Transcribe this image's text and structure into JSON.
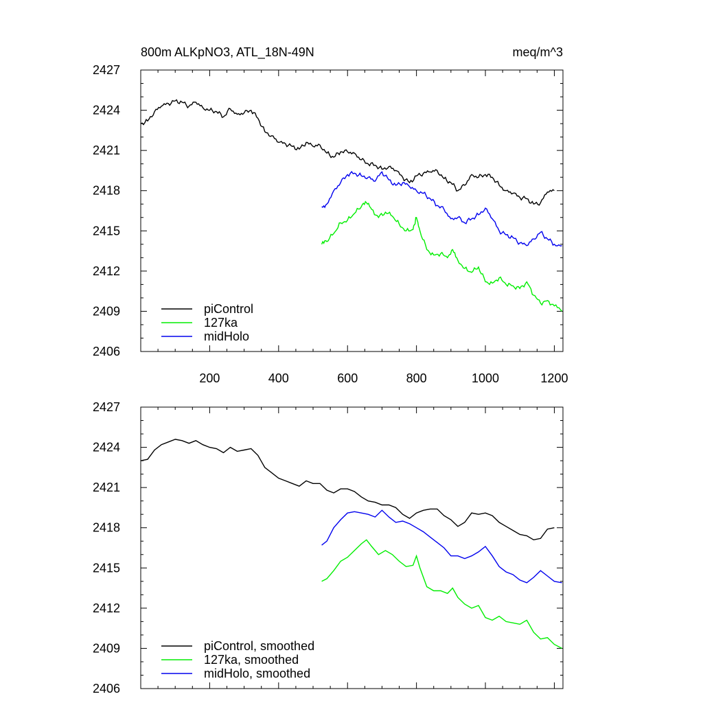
{
  "chart_data": [
    {
      "type": "line",
      "title": "800m ALKpNO3, ATL_18N-49N",
      "title_right": "meq/m^3",
      "xlim": [
        0,
        1225
      ],
      "ylim": [
        2406,
        2427
      ],
      "yticks": [
        2406,
        2409,
        2412,
        2415,
        2418,
        2421,
        2424,
        2427
      ],
      "xticks": [
        200,
        400,
        600,
        800,
        1000,
        1200
      ],
      "show_x_tick_labels": true,
      "legend_position": "bottom-left",
      "series": [
        {
          "name": "piControl",
          "color": "#000000",
          "x": [
            0,
            20,
            40,
            60,
            80,
            100,
            120,
            140,
            160,
            180,
            200,
            220,
            240,
            260,
            280,
            300,
            320,
            340,
            360,
            380,
            400,
            420,
            440,
            460,
            480,
            500,
            520,
            540,
            560,
            580,
            600,
            620,
            640,
            660,
            680,
            700,
            720,
            740,
            760,
            780,
            800,
            820,
            840,
            860,
            880,
            900,
            920,
            940,
            960,
            980,
            1000,
            1020,
            1040,
            1060,
            1080,
            1100,
            1120,
            1140,
            1160,
            1180,
            1200
          ],
          "y": [
            2423.0,
            2423.2,
            2423.9,
            2424.3,
            2424.5,
            2424.7,
            2424.6,
            2424.3,
            2424.6,
            2424.2,
            2424.0,
            2423.9,
            2423.5,
            2424.1,
            2423.7,
            2423.8,
            2424.0,
            2423.4,
            2422.4,
            2422.1,
            2421.6,
            2421.5,
            2421.3,
            2421.1,
            2421.6,
            2421.3,
            2421.4,
            2420.8,
            2420.5,
            2420.9,
            2420.9,
            2420.8,
            2420.3,
            2420.0,
            2419.9,
            2419.6,
            2419.8,
            2419.5,
            2419.0,
            2418.6,
            2419.1,
            2419.3,
            2419.4,
            2419.5,
            2418.9,
            2418.6,
            2418.0,
            2418.4,
            2419.2,
            2419.0,
            2419.2,
            2419.0,
            2418.4,
            2418.0,
            2417.8,
            2417.5,
            2417.4,
            2417.0,
            2417.1,
            2417.9,
            2418.0
          ]
        },
        {
          "name": "127ka",
          "color": "#00ee00",
          "x": [
            525,
            540,
            560,
            580,
            600,
            620,
            640,
            655,
            670,
            690,
            710,
            730,
            750,
            770,
            790,
            800,
            810,
            830,
            850,
            870,
            890,
            905,
            920,
            940,
            960,
            980,
            1000,
            1020,
            1040,
            1060,
            1080,
            1100,
            1120,
            1140,
            1160,
            1180,
            1200,
            1222
          ],
          "y": [
            2414.0,
            2414.2,
            2414.8,
            2415.6,
            2415.8,
            2416.3,
            2416.8,
            2417.1,
            2416.6,
            2416.0,
            2416.4,
            2416.1,
            2415.5,
            2415.0,
            2415.1,
            2416.0,
            2415.0,
            2413.6,
            2413.2,
            2413.3,
            2413.0,
            2413.6,
            2412.8,
            2412.2,
            2411.9,
            2412.3,
            2411.2,
            2411.1,
            2411.5,
            2411.0,
            2410.9,
            2410.7,
            2411.2,
            2410.2,
            2409.6,
            2409.8,
            2409.4,
            2409.0
          ]
        },
        {
          "name": "midHolo",
          "color": "#0000ee",
          "x": [
            525,
            540,
            560,
            580,
            600,
            620,
            640,
            660,
            680,
            700,
            720,
            740,
            760,
            780,
            800,
            820,
            840,
            860,
            880,
            900,
            920,
            940,
            960,
            980,
            1000,
            1020,
            1040,
            1060,
            1080,
            1100,
            1120,
            1140,
            1160,
            1180,
            1200,
            1222
          ],
          "y": [
            2416.8,
            2417.0,
            2418.0,
            2418.6,
            2419.2,
            2419.3,
            2419.1,
            2419.0,
            2418.7,
            2419.4,
            2418.8,
            2418.4,
            2418.6,
            2418.3,
            2418.0,
            2417.8,
            2417.4,
            2416.9,
            2416.6,
            2415.9,
            2416.0,
            2415.6,
            2415.9,
            2416.2,
            2416.7,
            2415.9,
            2415.0,
            2414.7,
            2414.5,
            2414.1,
            2413.9,
            2414.4,
            2414.9,
            2414.4,
            2414.0,
            2413.9
          ]
        }
      ]
    },
    {
      "type": "line",
      "xlim": [
        0,
        1225
      ],
      "ylim": [
        2406,
        2427
      ],
      "yticks": [
        2406,
        2409,
        2412,
        2415,
        2418,
        2421,
        2424,
        2427
      ],
      "xticks": [
        200,
        400,
        600,
        800,
        1000,
        1200
      ],
      "show_x_tick_labels": false,
      "legend_position": "bottom-left",
      "series": [
        {
          "name": "piControl, smoothed",
          "color": "#000000",
          "x": [
            0,
            20,
            40,
            60,
            80,
            100,
            120,
            140,
            160,
            180,
            200,
            220,
            240,
            260,
            280,
            300,
            320,
            340,
            360,
            380,
            400,
            420,
            440,
            460,
            480,
            500,
            520,
            540,
            560,
            580,
            600,
            620,
            640,
            660,
            680,
            700,
            720,
            740,
            760,
            780,
            800,
            820,
            840,
            860,
            880,
            900,
            920,
            940,
            960,
            980,
            1000,
            1020,
            1040,
            1060,
            1080,
            1100,
            1120,
            1140,
            1160,
            1180,
            1200
          ],
          "y": [
            2423.0,
            2423.1,
            2423.8,
            2424.2,
            2424.4,
            2424.6,
            2424.5,
            2424.3,
            2424.5,
            2424.2,
            2424.0,
            2423.9,
            2423.6,
            2424.0,
            2423.7,
            2423.8,
            2423.9,
            2423.4,
            2422.5,
            2422.1,
            2421.7,
            2421.5,
            2421.3,
            2421.1,
            2421.5,
            2421.3,
            2421.3,
            2420.8,
            2420.6,
            2420.9,
            2420.9,
            2420.7,
            2420.3,
            2420.0,
            2419.9,
            2419.7,
            2419.7,
            2419.5,
            2419.0,
            2418.7,
            2419.1,
            2419.3,
            2419.4,
            2419.4,
            2418.9,
            2418.6,
            2418.1,
            2418.4,
            2419.1,
            2419.0,
            2419.1,
            2418.9,
            2418.4,
            2418.1,
            2417.8,
            2417.5,
            2417.4,
            2417.1,
            2417.2,
            2417.9,
            2418.0
          ]
        },
        {
          "name": "127ka, smoothed",
          "color": "#00ee00",
          "x": [
            525,
            540,
            560,
            580,
            600,
            620,
            640,
            655,
            670,
            690,
            710,
            730,
            750,
            770,
            790,
            800,
            810,
            830,
            850,
            870,
            890,
            905,
            920,
            940,
            960,
            980,
            1000,
            1020,
            1040,
            1060,
            1080,
            1100,
            1120,
            1140,
            1160,
            1180,
            1200,
            1222
          ],
          "y": [
            2414.0,
            2414.2,
            2414.8,
            2415.5,
            2415.8,
            2416.3,
            2416.8,
            2417.1,
            2416.6,
            2416.0,
            2416.3,
            2416.0,
            2415.5,
            2415.1,
            2415.2,
            2415.9,
            2415.0,
            2413.6,
            2413.3,
            2413.3,
            2413.1,
            2413.5,
            2412.8,
            2412.3,
            2412.0,
            2412.2,
            2411.3,
            2411.1,
            2411.4,
            2411.0,
            2410.9,
            2410.8,
            2411.1,
            2410.2,
            2409.7,
            2409.8,
            2409.3,
            2409.0
          ]
        },
        {
          "name": "midHolo, smoothed",
          "color": "#0000ee",
          "x": [
            525,
            540,
            560,
            580,
            600,
            620,
            640,
            660,
            680,
            700,
            720,
            740,
            760,
            780,
            800,
            820,
            840,
            860,
            880,
            900,
            920,
            940,
            960,
            980,
            1000,
            1020,
            1040,
            1060,
            1080,
            1100,
            1120,
            1140,
            1160,
            1180,
            1200,
            1222
          ],
          "y": [
            2416.7,
            2417.0,
            2418.0,
            2418.6,
            2419.1,
            2419.2,
            2419.1,
            2419.0,
            2418.8,
            2419.3,
            2418.8,
            2418.4,
            2418.5,
            2418.3,
            2418.0,
            2417.7,
            2417.3,
            2416.9,
            2416.5,
            2415.9,
            2415.9,
            2415.7,
            2415.9,
            2416.2,
            2416.6,
            2415.9,
            2415.1,
            2414.7,
            2414.5,
            2414.1,
            2413.9,
            2414.3,
            2414.8,
            2414.4,
            2414.0,
            2413.9
          ]
        }
      ]
    }
  ]
}
